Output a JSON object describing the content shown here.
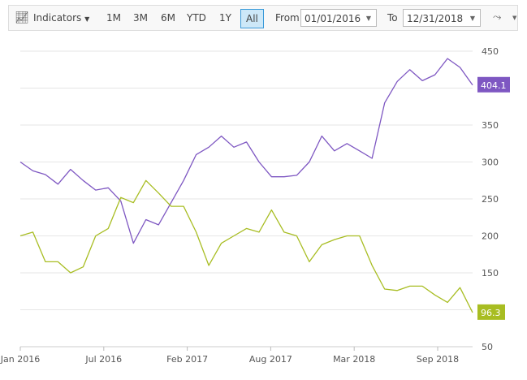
{
  "toolbar": {
    "indicators_label": "Indicators",
    "ranges": [
      "1M",
      "3M",
      "6M",
      "YTD",
      "1Y",
      "All"
    ],
    "active_range": "All",
    "from_label": "From",
    "from_value": "01/01/2016",
    "to_label": "To",
    "to_value": "12/31/2018",
    "icons": [
      "indicators-chart-icon",
      "line-chart-type-icon"
    ]
  },
  "chart_data": {
    "type": "line",
    "xlim": [
      "2016-01",
      "2018-12"
    ],
    "ylim": [
      50,
      450
    ],
    "yticks": [
      50,
      100,
      150,
      200,
      250,
      300,
      350,
      400,
      450
    ],
    "ytick_labels": [
      "50",
      "150",
      "200",
      "250",
      "300",
      "350",
      "450"
    ],
    "xtick_labels": [
      "Jan 2016",
      "Jul 2016",
      "Feb 2017",
      "Aug 2017",
      "Mar 2018",
      "Sep 2018"
    ],
    "grid": true,
    "x": [
      "2016-01",
      "2016-02",
      "2016-03",
      "2016-04",
      "2016-05",
      "2016-06",
      "2016-07",
      "2016-08",
      "2016-09",
      "2016-10",
      "2016-11",
      "2016-12",
      "2017-01",
      "2017-02",
      "2017-03",
      "2017-04",
      "2017-05",
      "2017-06",
      "2017-07",
      "2017-08",
      "2017-09",
      "2017-10",
      "2017-11",
      "2017-12",
      "2018-01",
      "2018-02",
      "2018-03",
      "2018-04",
      "2018-05",
      "2018-06",
      "2018-07",
      "2018-08",
      "2018-09",
      "2018-10",
      "2018-11",
      "2018-12",
      "2018-12-31"
    ],
    "series": [
      {
        "color": "#7e57c2",
        "last_label": "404.1",
        "values": [
          300,
          288,
          283,
          270,
          290,
          275,
          262,
          265,
          247,
          190,
          222,
          215,
          245,
          275,
          310,
          320,
          335,
          320,
          327,
          300,
          280,
          280,
          282,
          300,
          335,
          315,
          325,
          315,
          305,
          380,
          409,
          425,
          410,
          418,
          440,
          428,
          404.1
        ]
      },
      {
        "color": "#a8bd22",
        "last_label": "96.3",
        "values": [
          200,
          205,
          165,
          165,
          150,
          158,
          200,
          210,
          252,
          245,
          275,
          258,
          240,
          240,
          205,
          160,
          190,
          200,
          210,
          205,
          235,
          205,
          200,
          165,
          188,
          195,
          200,
          200,
          160,
          128,
          126,
          132,
          132,
          120,
          110,
          130,
          96.3
        ]
      }
    ]
  }
}
